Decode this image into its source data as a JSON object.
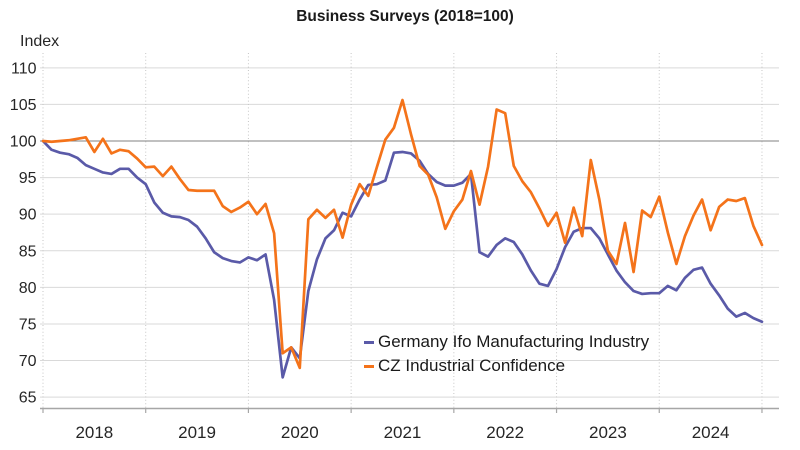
{
  "title": "Business Surveys (2018=100)",
  "y_axis_label": "Index",
  "chart_data": {
    "type": "line",
    "frequency": "monthly",
    "x_start": "2017-12",
    "x_end": "2024-12",
    "x_tick_labels": [
      "2018",
      "2019",
      "2020",
      "2021",
      "2022",
      "2023",
      "2024"
    ],
    "yticks": [
      65,
      70,
      75,
      80,
      85,
      90,
      95,
      100,
      105,
      110
    ],
    "ylim": [
      63.5,
      112
    ],
    "reference_line": 100,
    "grid": {
      "horizontal": true,
      "vertical": "dotted-year-boundaries",
      "legend_position": "inside-bottom-center"
    },
    "series": [
      {
        "name": "Germany Ifo Manufacturing Industry",
        "color": "#5A5AA8",
        "values": [
          100.0,
          98.8,
          98.4,
          98.2,
          97.7,
          96.7,
          96.2,
          95.7,
          95.5,
          96.2,
          96.2,
          95.0,
          94.1,
          91.6,
          90.2,
          89.7,
          89.6,
          89.2,
          88.3,
          86.7,
          84.8,
          84.0,
          83.6,
          83.4,
          84.1,
          83.7,
          84.5,
          78.3,
          67.7,
          71.8,
          70.3,
          79.5,
          83.8,
          86.7,
          87.8,
          90.2,
          89.7,
          92.0,
          94.0,
          94.1,
          94.6,
          98.4,
          98.5,
          98.3,
          97.3,
          95.5,
          94.4,
          93.9,
          93.9,
          94.3,
          95.5,
          84.8,
          84.2,
          85.8,
          86.7,
          86.2,
          84.5,
          82.3,
          80.5,
          80.2,
          82.5,
          85.5,
          87.6,
          88.1,
          88.1,
          86.7,
          84.5,
          82.3,
          80.7,
          79.5,
          79.1,
          79.2,
          79.2,
          80.2,
          79.6,
          81.3,
          82.4,
          82.7,
          80.5,
          78.9,
          77.1,
          76.0,
          76.5,
          75.8,
          75.3
        ]
      },
      {
        "name": "CZ Industrial Confidence",
        "color": "#F4731A",
        "values": [
          100.0,
          99.9,
          100.0,
          100.1,
          100.3,
          100.5,
          98.5,
          100.3,
          98.3,
          98.8,
          98.6,
          97.6,
          96.4,
          96.5,
          95.2,
          96.5,
          94.8,
          93.3,
          93.2,
          93.2,
          93.2,
          91.1,
          90.3,
          90.9,
          91.7,
          90.0,
          91.4,
          87.4,
          71.0,
          71.8,
          69.0,
          89.3,
          90.6,
          89.5,
          90.6,
          86.8,
          91.3,
          94.1,
          92.5,
          96.4,
          100.2,
          101.8,
          105.6,
          100.9,
          96.6,
          95.4,
          92.3,
          88.0,
          90.4,
          92.0,
          95.9,
          91.3,
          96.5,
          104.3,
          103.8,
          96.6,
          94.5,
          93.0,
          90.8,
          88.4,
          90.2,
          86.1,
          90.9,
          87.0,
          97.4,
          92.0,
          85.0,
          83.2,
          88.8,
          82.1,
          90.5,
          89.6,
          92.4,
          87.5,
          83.2,
          87.0,
          89.8,
          92.0,
          87.8,
          91.0,
          92.0,
          91.8,
          92.2,
          88.4,
          85.8
        ]
      }
    ]
  }
}
